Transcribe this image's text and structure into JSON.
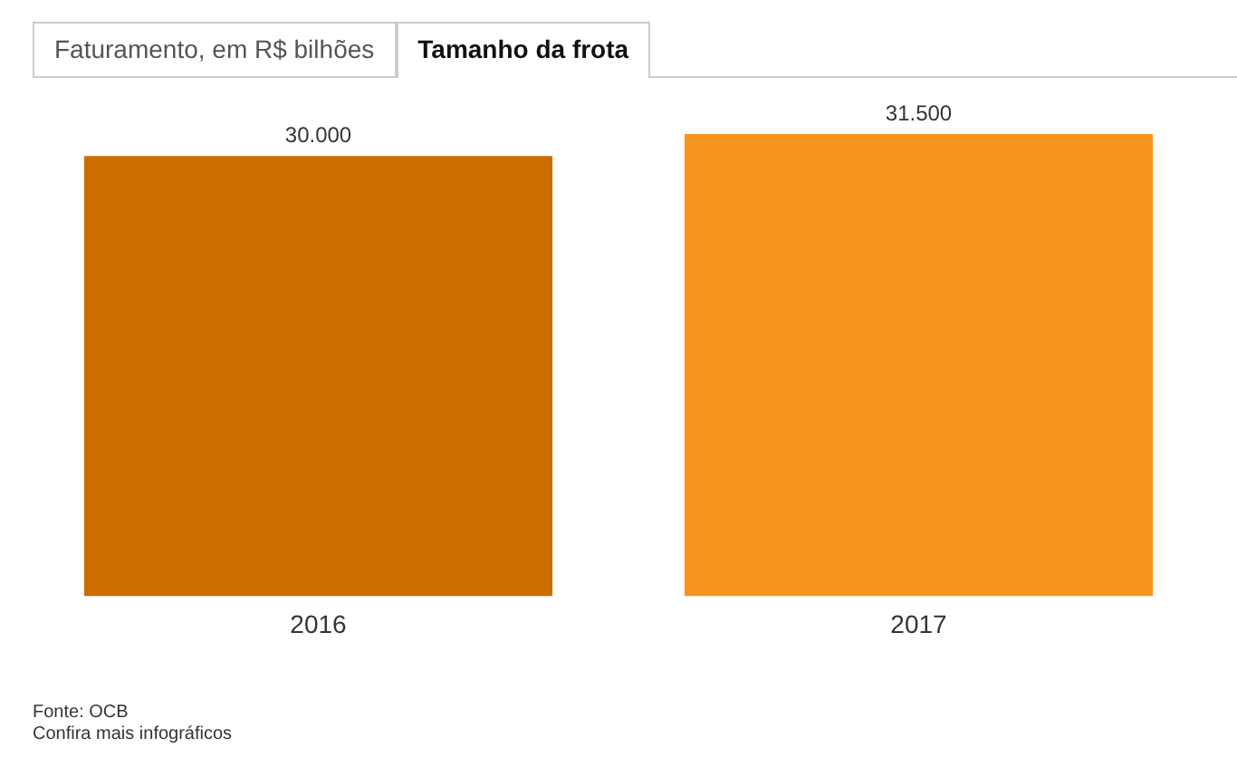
{
  "chart_data": {
    "type": "bar",
    "title": "Tamanho da frota",
    "subtitle": "Faturamento, em R$ bilhões",
    "categories": [
      "2016",
      "2017"
    ],
    "values": [
      30000,
      31500
    ],
    "colors": [
      "#cc6d00",
      "#f7941d"
    ],
    "value_labels": [
      "30.000",
      "31.500"
    ],
    "tick_labels": "x",
    "grid": false,
    "legend": false,
    "annotations": [
      "Fonte: OCB",
      "Confira mais infográficos"
    ]
  }
}
